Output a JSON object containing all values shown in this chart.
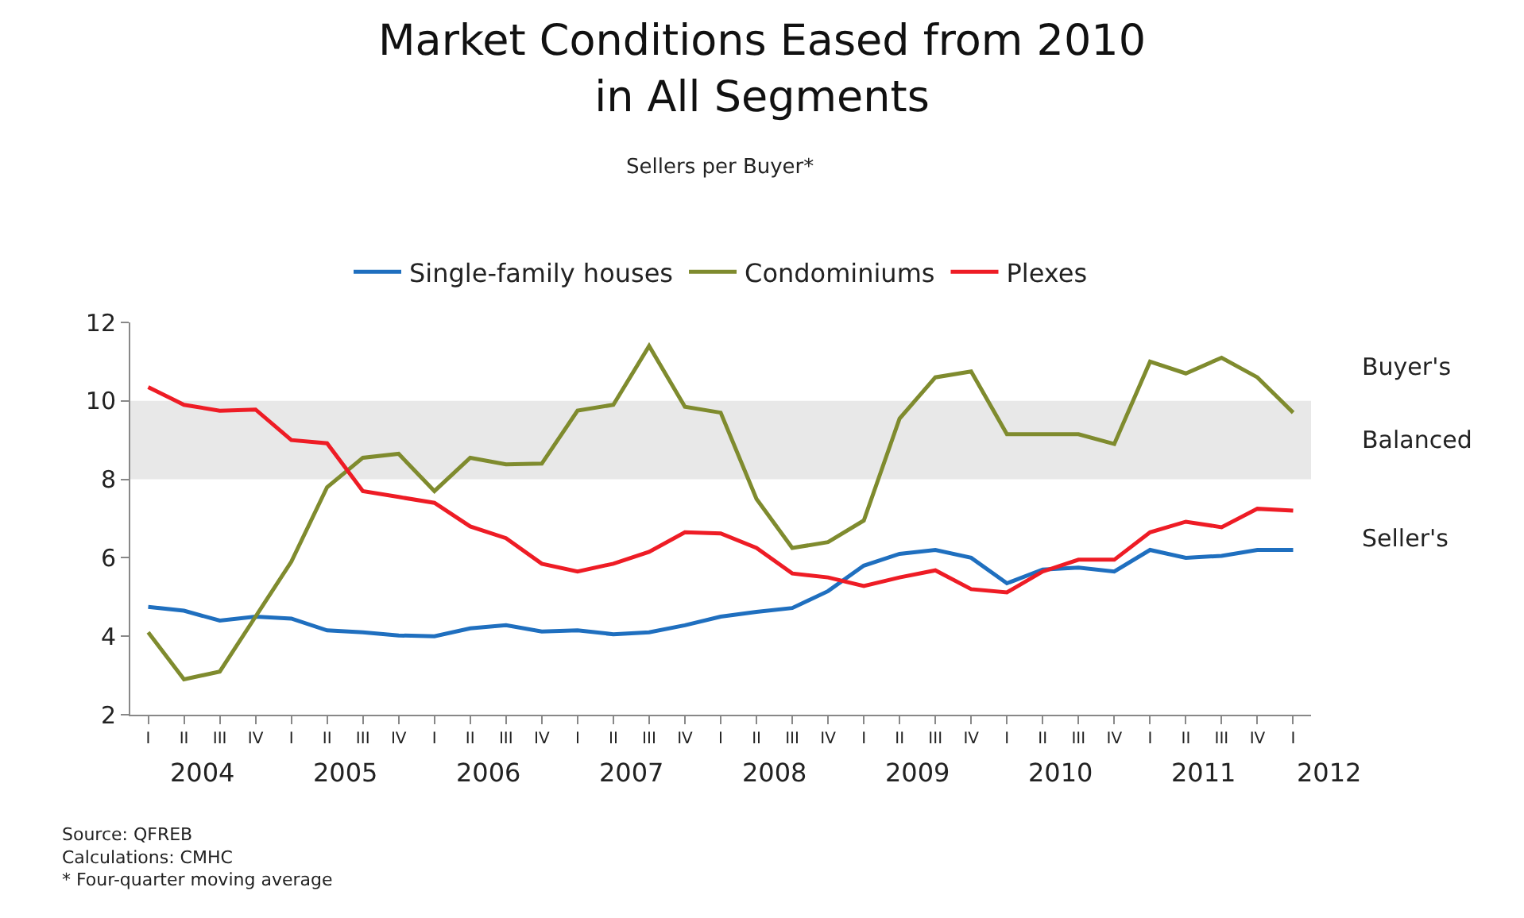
{
  "chart_data": {
    "type": "line",
    "title": "Market Conditions Eased from 2010\nin All Segments",
    "subtitle": "Sellers per Buyer*",
    "categories": [
      "I",
      "II",
      "III",
      "IV",
      "I",
      "II",
      "III",
      "IV",
      "I",
      "II",
      "III",
      "IV",
      "I",
      "II",
      "III",
      "IV",
      "I",
      "II",
      "III",
      "IV",
      "I",
      "II",
      "III",
      "IV",
      "I",
      "II",
      "III",
      "IV",
      "I",
      "II",
      "III",
      "IV",
      "I"
    ],
    "series": [
      {
        "name": "Single-family houses",
        "color": "#1f6fbf",
        "values": [
          4.75,
          4.65,
          4.4,
          4.5,
          4.45,
          4.15,
          4.1,
          4.02,
          4.0,
          4.2,
          4.28,
          4.12,
          4.15,
          4.05,
          4.1,
          4.28,
          4.5,
          4.62,
          4.72,
          5.15,
          5.8,
          6.1,
          6.2,
          6.0,
          5.35,
          5.7,
          5.75,
          5.65,
          6.2,
          6.0,
          6.05,
          6.2,
          6.2
        ]
      },
      {
        "name": "Condominiums",
        "color": "#7f8b2e",
        "values": [
          4.1,
          2.9,
          3.1,
          4.5,
          5.9,
          7.8,
          8.55,
          8.65,
          7.7,
          8.55,
          8.38,
          8.4,
          9.75,
          9.9,
          11.4,
          9.85,
          9.7,
          7.5,
          6.25,
          6.4,
          6.95,
          9.55,
          10.6,
          10.75,
          9.15,
          9.15,
          9.15,
          8.9,
          11.0,
          10.7,
          11.1,
          10.6,
          9.7
        ]
      },
      {
        "name": "Plexes",
        "color": "#ee1c25",
        "values": [
          10.35,
          9.9,
          9.75,
          9.78,
          9.0,
          8.92,
          7.7,
          7.55,
          7.4,
          6.8,
          6.5,
          5.85,
          5.65,
          5.85,
          6.15,
          6.65,
          6.62,
          6.25,
          5.6,
          5.5,
          5.28,
          5.5,
          5.68,
          5.2,
          5.12,
          5.65,
          5.95,
          5.95,
          6.65,
          6.92,
          6.78,
          7.25,
          7.2
        ]
      }
    ],
    "ylim": [
      2,
      12
    ],
    "yticks": [
      2,
      4,
      6,
      8,
      10,
      12
    ],
    "grid": false,
    "legend": "top",
    "marker": "none",
    "line_style": "solid",
    "bands": [
      {
        "axis": "y",
        "from": 8,
        "to": 10,
        "label": "Balanced",
        "color": "#e8e8e8"
      }
    ],
    "annotations": [
      "2004",
      "2005",
      "2006",
      "2007",
      "2008",
      "2009",
      "2010",
      "2011",
      "2012",
      "Buyer's",
      "Seller's",
      "Source: QFREB\nCalculations: CMHC\n* Four-quarter moving average"
    ]
  }
}
